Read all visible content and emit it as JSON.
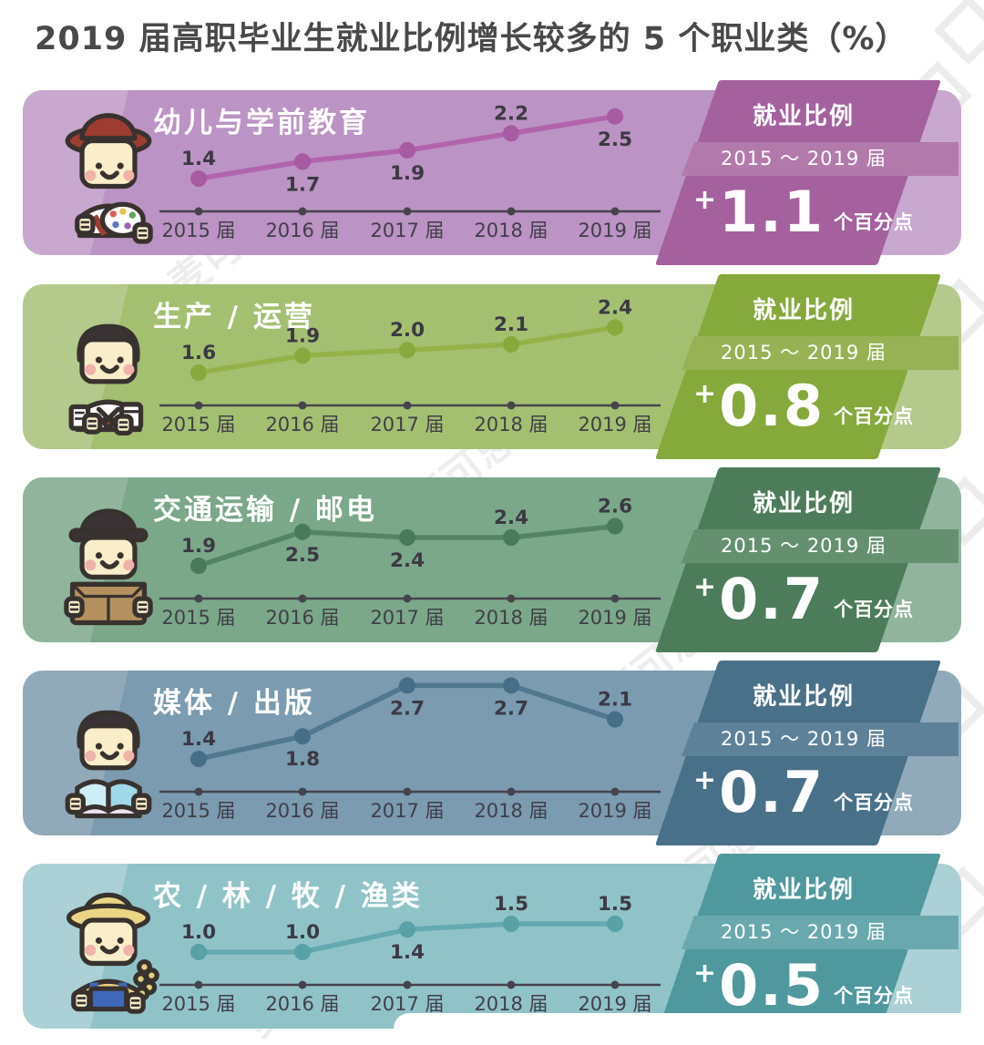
{
  "page": {
    "title": "2019 届高职毕业生就业比例增长较多的 5 个职业类（%）"
  },
  "panel_labels": {
    "heading": "就业比例",
    "period": "2015 ～ 2019 届",
    "plus_sign": "+",
    "delta_suffix": "个百分点"
  },
  "x_axis": {
    "labels": [
      "2015 届",
      "2016 届",
      "2017 届",
      "2018 届",
      "2019 届"
    ]
  },
  "chart_style": {
    "axis_color": "#46434d",
    "value_text_color": "#3c3943"
  },
  "watermark": {
    "text": "麦可思研究"
  },
  "chart_data": [
    {
      "type": "line",
      "title": "幼儿与学前教育",
      "icon": "preschool-teacher-icon",
      "categories": [
        "2015 届",
        "2016 届",
        "2017 届",
        "2018 届",
        "2019 届"
      ],
      "values": [
        1.4,
        1.7,
        1.9,
        2.2,
        2.5
      ],
      "value_labels": [
        "1.4",
        "1.7",
        "1.9",
        "2.2",
        "2.5"
      ],
      "label_positions": [
        "above",
        "below",
        "below",
        "above",
        "below"
      ],
      "delta": "1.1",
      "colors": {
        "base": "#c8a8ce",
        "overlay": "#bb93c4",
        "panel": "#a4619e",
        "stripe": "#b27aab",
        "line": "#b163ac",
        "point": "#a75ba2"
      }
    },
    {
      "type": "line",
      "title": "生产 / 运营",
      "icon": "production-operations-icon",
      "categories": [
        "2015 届",
        "2016 届",
        "2017 届",
        "2018 届",
        "2019 届"
      ],
      "values": [
        1.6,
        1.9,
        2.0,
        2.1,
        2.4
      ],
      "value_labels": [
        "1.6",
        "1.9",
        "2.0",
        "2.1",
        "2.4"
      ],
      "label_positions": [
        "above",
        "above",
        "above",
        "above",
        "above"
      ],
      "delta": "0.8",
      "colors": {
        "base": "#b4ca8c",
        "overlay": "#a3c071",
        "panel": "#86a93b",
        "stripe": "#96b254",
        "line": "#95b249",
        "point": "#88aa3c"
      }
    },
    {
      "type": "line",
      "title": "交通运输 / 邮电",
      "icon": "transportation-post-icon",
      "categories": [
        "2015 届",
        "2016 届",
        "2017 届",
        "2018 届",
        "2019 届"
      ],
      "values": [
        1.9,
        2.5,
        2.4,
        2.4,
        2.6
      ],
      "value_labels": [
        "1.9",
        "2.5",
        "2.4",
        "2.4",
        "2.6"
      ],
      "label_positions": [
        "above",
        "below",
        "below",
        "above",
        "above"
      ],
      "delta": "0.7",
      "colors": {
        "base": "#90b59c",
        "overlay": "#7aa889",
        "panel": "#4d7c5a",
        "stripe": "#649070",
        "line": "#558464",
        "point": "#4a7a59"
      }
    },
    {
      "type": "line",
      "title": "媒体 / 出版",
      "icon": "media-publishing-icon",
      "categories": [
        "2015 届",
        "2016 届",
        "2017 届",
        "2018 届",
        "2019 届"
      ],
      "values": [
        1.4,
        1.8,
        2.7,
        2.7,
        2.1
      ],
      "value_labels": [
        "1.4",
        "1.8",
        "2.7",
        "2.7",
        "2.1"
      ],
      "label_positions": [
        "above",
        "below",
        "below",
        "below",
        "above"
      ],
      "delta": "0.7",
      "colors": {
        "base": "#91aaba",
        "overlay": "#7a9bb0",
        "panel": "#497089",
        "stripe": "#5d8199",
        "line": "#50788f",
        "point": "#466e88"
      }
    },
    {
      "type": "line",
      "title": "农 / 林 / 牧 / 渔类",
      "icon": "agriculture-forestry-icon",
      "categories": [
        "2015 届",
        "2016 届",
        "2017 届",
        "2018 届",
        "2019 届"
      ],
      "values": [
        1.0,
        1.0,
        1.4,
        1.5,
        1.5
      ],
      "value_labels": [
        "1.0",
        "1.0",
        "1.4",
        "1.5",
        "1.5"
      ],
      "label_positions": [
        "above",
        "above",
        "below",
        "above",
        "above"
      ],
      "delta": "0.5",
      "colors": {
        "base": "#abd0d5",
        "overlay": "#90c3c8",
        "panel": "#4e989e",
        "stripe": "#69a9ae",
        "line": "#63a9af",
        "point": "#58a1a7"
      }
    }
  ]
}
